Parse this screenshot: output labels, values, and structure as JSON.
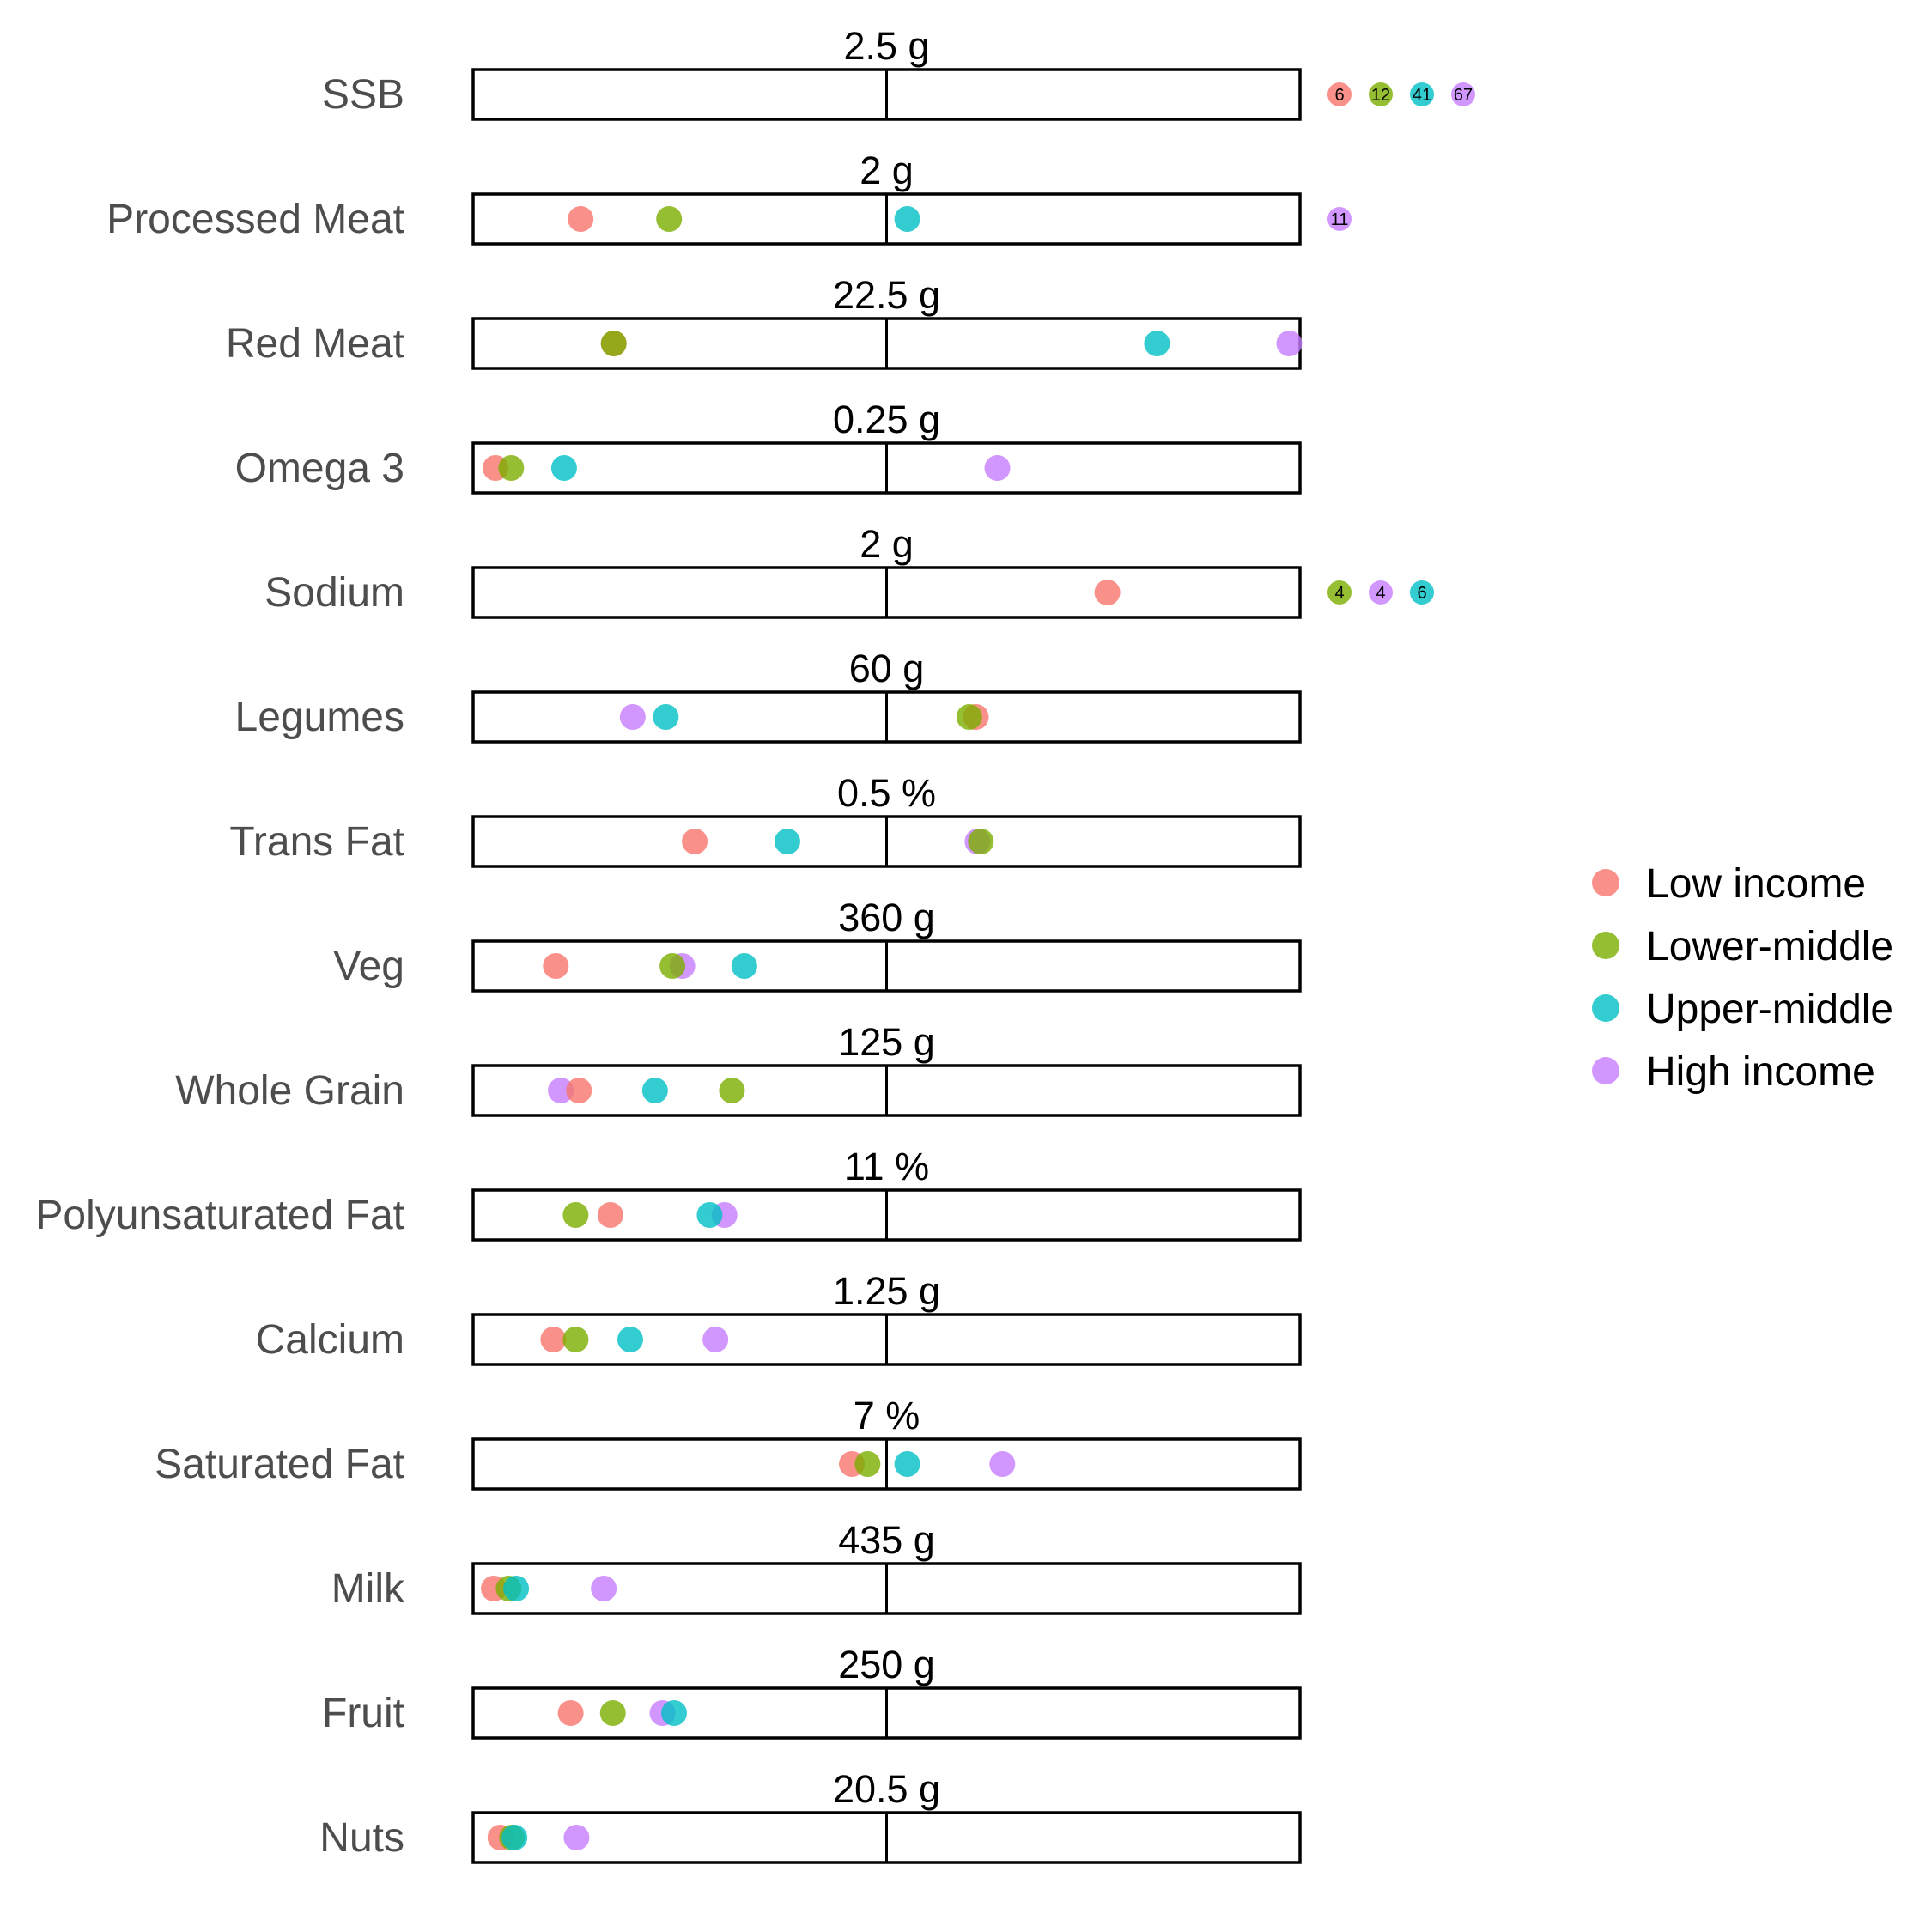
{
  "chart_data": {
    "type": "scatter",
    "title": "",
    "xlabel": "",
    "ylabel": "",
    "scale_note": "x positions are relative to the target (0 = none, 0.5 = target, 1 = twice target)",
    "groups": [
      {
        "name": "Low income",
        "color": "#F8766D"
      },
      {
        "name": "Lower-middle",
        "color": "#7CAE00"
      },
      {
        "name": "Upper-middle",
        "color": "#00BFC4"
      },
      {
        "name": "High income",
        "color": "#C77CFF"
      }
    ],
    "rows": [
      {
        "label": "SSB",
        "target": "2.5 g",
        "points": [],
        "overflow": [
          {
            "group": 0,
            "text": "6"
          },
          {
            "group": 1,
            "text": "12"
          },
          {
            "group": 2,
            "text": "41"
          },
          {
            "group": 3,
            "text": "67"
          }
        ]
      },
      {
        "label": "Processed Meat",
        "target": "2 g",
        "points": [
          {
            "group": 0,
            "x": 0.13
          },
          {
            "group": 1,
            "x": 0.237
          },
          {
            "group": 2,
            "x": 0.525
          }
        ],
        "overflow": [
          {
            "group": 3,
            "text": "11"
          }
        ]
      },
      {
        "label": "Red Meat",
        "target": "22.5 g",
        "points": [
          {
            "group": 0,
            "x": 0.17
          },
          {
            "group": 1,
            "x": 0.17
          },
          {
            "group": 2,
            "x": 0.827
          },
          {
            "group": 3,
            "x": 0.987
          }
        ],
        "overflow": []
      },
      {
        "label": "Omega 3",
        "target": "0.25 g",
        "points": [
          {
            "group": 0,
            "x": 0.027
          },
          {
            "group": 1,
            "x": 0.046
          },
          {
            "group": 2,
            "x": 0.11
          },
          {
            "group": 3,
            "x": 0.634
          }
        ],
        "overflow": []
      },
      {
        "label": "Sodium",
        "target": "2 g",
        "points": [
          {
            "group": 0,
            "x": 0.767
          }
        ],
        "overflow": [
          {
            "group": 1,
            "text": "4"
          },
          {
            "group": 3,
            "text": "4"
          },
          {
            "group": 2,
            "text": "6"
          }
        ]
      },
      {
        "label": "Legumes",
        "target": "60 g",
        "points": [
          {
            "group": 0,
            "x": 0.608
          },
          {
            "group": 1,
            "x": 0.6
          },
          {
            "group": 2,
            "x": 0.233
          },
          {
            "group": 3,
            "x": 0.193
          }
        ],
        "overflow": []
      },
      {
        "label": "Trans Fat",
        "target": "0.5 %",
        "points": [
          {
            "group": 0,
            "x": 0.268
          },
          {
            "group": 3,
            "x": 0.61
          },
          {
            "group": 2,
            "x": 0.38
          },
          {
            "group": 1,
            "x": 0.614
          }
        ],
        "overflow": []
      },
      {
        "label": "Veg",
        "target": "360 g",
        "points": [
          {
            "group": 0,
            "x": 0.1
          },
          {
            "group": 3,
            "x": 0.253
          },
          {
            "group": 1,
            "x": 0.241
          },
          {
            "group": 2,
            "x": 0.328
          }
        ],
        "overflow": []
      },
      {
        "label": "Whole Grain",
        "target": "125 g",
        "points": [
          {
            "group": 3,
            "x": 0.106
          },
          {
            "group": 0,
            "x": 0.128
          },
          {
            "group": 2,
            "x": 0.22
          },
          {
            "group": 1,
            "x": 0.313
          }
        ],
        "overflow": []
      },
      {
        "label": "Polyunsaturated Fat",
        "target": "11 %",
        "points": [
          {
            "group": 1,
            "x": 0.124
          },
          {
            "group": 0,
            "x": 0.166
          },
          {
            "group": 3,
            "x": 0.304
          },
          {
            "group": 2,
            "x": 0.286
          }
        ],
        "overflow": []
      },
      {
        "label": "Calcium",
        "target": "1.25 g",
        "points": [
          {
            "group": 0,
            "x": 0.097
          },
          {
            "group": 1,
            "x": 0.124
          },
          {
            "group": 2,
            "x": 0.19
          },
          {
            "group": 3,
            "x": 0.293
          }
        ],
        "overflow": []
      },
      {
        "label": "Saturated Fat",
        "target": "7 %",
        "points": [
          {
            "group": 0,
            "x": 0.458
          },
          {
            "group": 1,
            "x": 0.477
          },
          {
            "group": 2,
            "x": 0.525
          },
          {
            "group": 3,
            "x": 0.64
          }
        ],
        "overflow": []
      },
      {
        "label": "Milk",
        "target": "435 g",
        "points": [
          {
            "group": 0,
            "x": 0.025
          },
          {
            "group": 1,
            "x": 0.043
          },
          {
            "group": 2,
            "x": 0.052
          },
          {
            "group": 3,
            "x": 0.158
          }
        ],
        "overflow": []
      },
      {
        "label": "Fruit",
        "target": "250 g",
        "points": [
          {
            "group": 0,
            "x": 0.118
          },
          {
            "group": 1,
            "x": 0.169
          },
          {
            "group": 3,
            "x": 0.229
          },
          {
            "group": 2,
            "x": 0.243
          }
        ],
        "overflow": []
      },
      {
        "label": "Nuts",
        "target": "20.5 g",
        "points": [
          {
            "group": 0,
            "x": 0.033
          },
          {
            "group": 1,
            "x": 0.047
          },
          {
            "group": 2,
            "x": 0.05
          },
          {
            "group": 3,
            "x": 0.125
          }
        ],
        "overflow": []
      }
    ],
    "legend_position": "right"
  }
}
